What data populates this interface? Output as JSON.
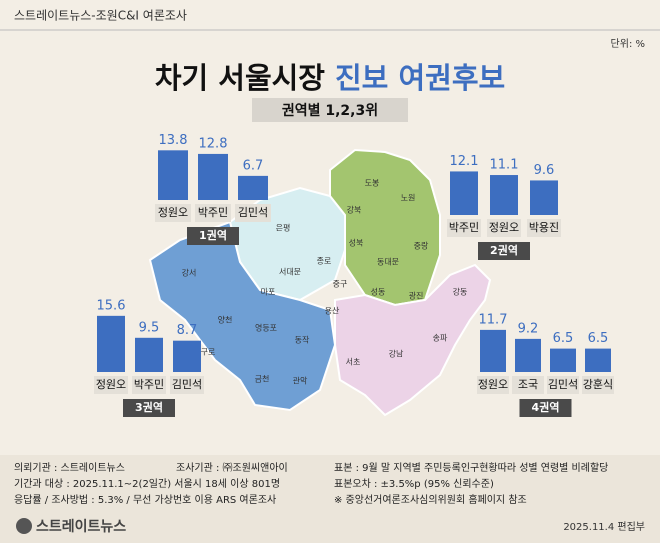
{
  "header": {
    "source": "스트레이트뉴스-조원C&I 여론조사",
    "unit": "단위: %",
    "title_main": "차기 서울시장",
    "title_accent": "진보 여권후보",
    "subtitle": "권역별 1,2,3위"
  },
  "chart_data": [
    {
      "type": "bar",
      "title": "1권역",
      "color": "#3d6ec0",
      "categories": [
        "정원오",
        "박주민",
        "김민석"
      ],
      "values": [
        13.8,
        12.8,
        6.7
      ]
    },
    {
      "type": "bar",
      "title": "2권역",
      "color": "#3d6ec0",
      "categories": [
        "박주민",
        "정원오",
        "박용진"
      ],
      "values": [
        12.1,
        11.1,
        9.6
      ]
    },
    {
      "type": "bar",
      "title": "3권역",
      "color": "#3d6ec0",
      "categories": [
        "정원오",
        "박주민",
        "김민석"
      ],
      "values": [
        15.6,
        9.5,
        8.7
      ]
    },
    {
      "type": "bar",
      "title": "4권역",
      "color": "#3d6ec0",
      "categories": [
        "정원오",
        "조국",
        "김민석",
        "강훈식"
      ],
      "values": [
        11.7,
        9.2,
        6.5,
        6.5
      ]
    }
  ],
  "map_labels": [
    "도봉",
    "노원",
    "강북",
    "성북",
    "중랑",
    "은평",
    "종로",
    "서대문",
    "동대문",
    "마포",
    "중구",
    "성동",
    "광진",
    "강서",
    "용산",
    "강동",
    "양천",
    "영등포",
    "동작",
    "구로",
    "서초",
    "강남",
    "송파",
    "금천",
    "관악"
  ],
  "footer": {
    "client": "의뢰기관 : 스트레이트뉴스",
    "agency": "조사기관 : ㈜조원씨앤아이",
    "period": "기간과 대상 : 2025.11.1~2(2일간) 서울시 18세 이상 801명",
    "method": "응답률 / 조사방법 : 5.3% / 무선 가상번호 이용 ARS 여론조사",
    "sample": "표본 : 9월 말 지역별 주민등록인구현황따라 성별 연령별 비례할당",
    "error": "표본오차 : ±3.5%p (95% 신뢰수준)",
    "note": "※ 중앙선거여론조사심의위원회 홈페이지 참조",
    "logo": "스트레이트뉴스",
    "date": "2025.11.4 편집부"
  }
}
